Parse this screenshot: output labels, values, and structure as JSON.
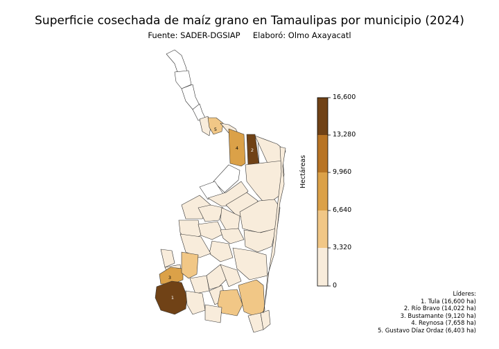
{
  "title": "Superficie cosechada de maíz grano en Tamaulipas por municipio (2024)",
  "subtitle": {
    "source": "Fuente: SADER-DGSIAP",
    "author": "Elaboró: Olmo Axayacatl"
  },
  "colorbar": {
    "label": "Hectáreas",
    "ticks": [
      "0",
      "3,320",
      "6,640",
      "9,960",
      "13,280",
      "16,600"
    ],
    "colors": [
      "#f8ecdb",
      "#f1c786",
      "#dba148",
      "#b87424",
      "#704216"
    ]
  },
  "map_labels": [
    "1",
    "2",
    "3",
    "4",
    "5"
  ],
  "leaders": {
    "heading": "Líderes:",
    "items": [
      "1. Tula (16,600 ha)",
      "2. Río Bravo (14,022 ha)",
      "3. Bustamante (9,120 ha)",
      "4. Reynosa (7,658 ha)",
      "5. Gustavo Díaz Ordaz (6,403 ha)"
    ]
  },
  "chart_data": {
    "type": "choropleth",
    "scale_min": 0,
    "scale_max": 16600,
    "values": [
      {
        "rank": 1,
        "municipio": "Tula",
        "ha": 16600
      },
      {
        "rank": 2,
        "municipio": "Río Bravo",
        "ha": 14022
      },
      {
        "rank": 3,
        "municipio": "Bustamante",
        "ha": 9120
      },
      {
        "rank": 4,
        "municipio": "Reynosa",
        "ha": 7658
      },
      {
        "rank": 5,
        "municipio": "Gustavo Díaz Ordaz",
        "ha": 6403
      }
    ]
  }
}
